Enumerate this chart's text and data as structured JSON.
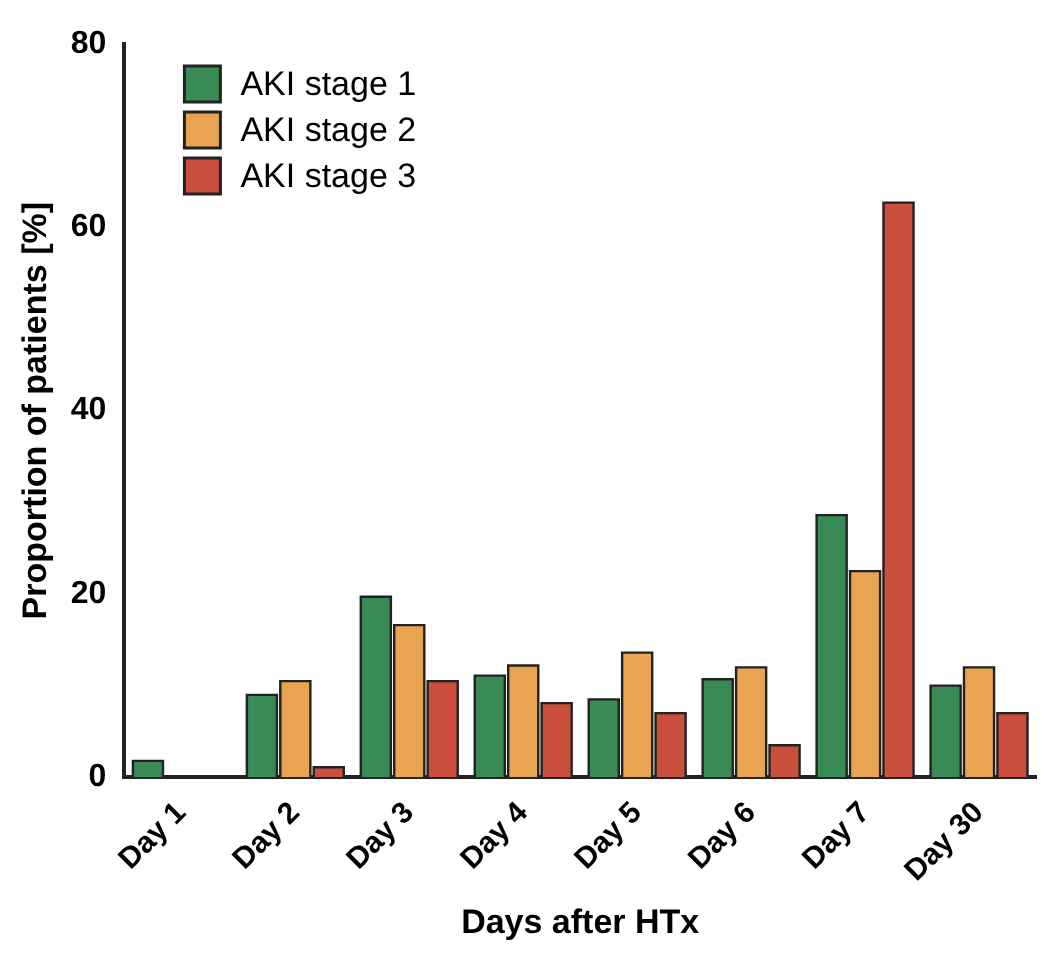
{
  "chart_data": {
    "type": "bar",
    "xlabel": "Days after HTx",
    "ylabel": "Proportion of patients [%]",
    "categories": [
      "Day 1",
      "Day 2",
      "Day 3",
      "Day 4",
      "Day 5",
      "Day 6",
      "Day 7",
      "Day 30"
    ],
    "series": [
      {
        "name": "AKI stage 1",
        "color": "#3a8a55",
        "values": [
          1.8,
          9.0,
          19.7,
          11.1,
          8.5,
          10.7,
          28.6,
          10.0
        ]
      },
      {
        "name": "AKI stage 2",
        "color": "#e8a451",
        "values": [
          0,
          10.5,
          16.6,
          12.2,
          13.6,
          12.0,
          22.5,
          12.0
        ]
      },
      {
        "name": "AKI stage 3",
        "color": "#c94e3b",
        "values": [
          0,
          1.1,
          10.5,
          8.1,
          7.0,
          3.5,
          62.7,
          7.0
        ]
      }
    ],
    "ylim": [
      0,
      80
    ],
    "yticks": [
      0,
      20,
      40,
      60,
      80
    ],
    "grid": false,
    "legend": "top left"
  }
}
